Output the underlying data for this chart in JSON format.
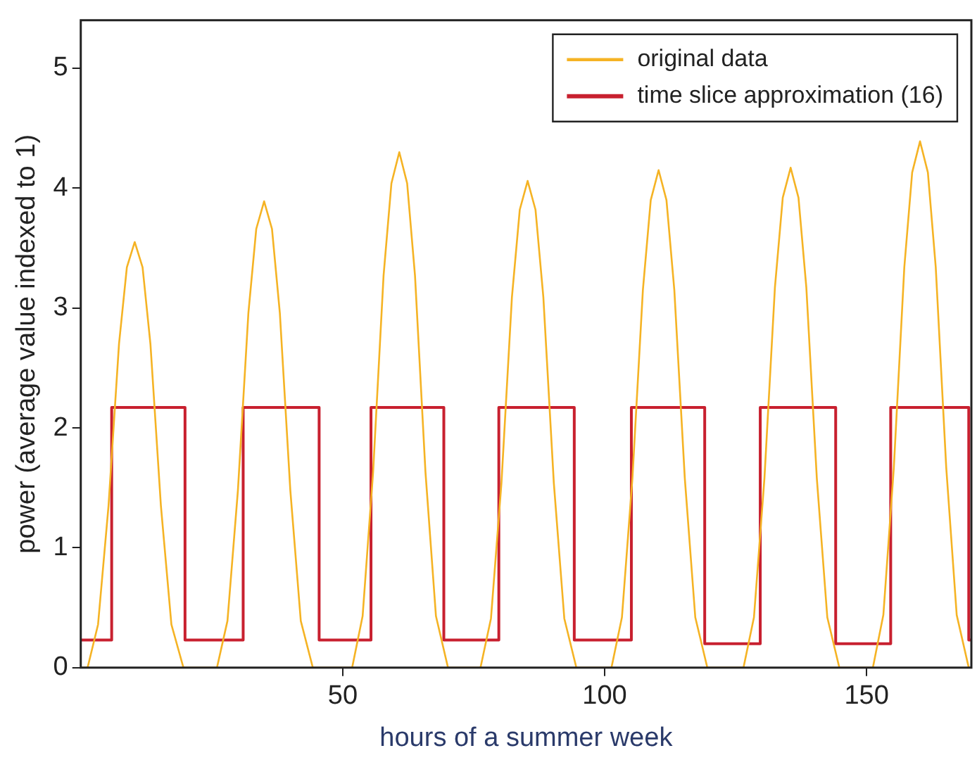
{
  "chart_data": {
    "type": "line",
    "xlabel": "hours of a summer week",
    "ylabel": "power (average value indexed to 1)",
    "xlim": [
      0,
      170
    ],
    "xticks": [
      50,
      100,
      150
    ],
    "ylim": [
      0,
      5.4
    ],
    "yticks": [
      0,
      1,
      2,
      3,
      4,
      5
    ],
    "grid": false,
    "legend": "top right",
    "marker": "none",
    "line_style": "solid",
    "series": [
      {
        "name": "original data",
        "type": "line",
        "color": "#f5b324",
        "x": [
          0,
          1.3,
          3.3,
          5.3,
          7.3,
          8.8,
          10.3,
          11.8,
          13.3,
          15.3,
          17.3,
          19.6,
          26,
          28,
          30,
          32,
          33.5,
          35,
          36.5,
          38,
          40,
          42,
          44.3,
          51.8,
          53.8,
          55.8,
          57.8,
          59.3,
          60.8,
          62.3,
          63.8,
          65.8,
          67.8,
          70.1,
          76.3,
          78.3,
          80.3,
          82.3,
          83.8,
          85.3,
          86.8,
          88.3,
          90.3,
          92.3,
          94.6,
          101.3,
          103.3,
          105.3,
          107.3,
          108.8,
          110.3,
          111.8,
          113.3,
          115.3,
          117.3,
          119.6,
          126.5,
          128.5,
          130.5,
          132.5,
          134,
          135.5,
          137,
          138.5,
          140.5,
          142.5,
          144.8,
          151.2,
          153.2,
          155.2,
          157.2,
          158.7,
          160.2,
          161.7,
          163.2,
          165.2,
          167.2,
          169.5,
          170
        ],
        "values": [
          0,
          0,
          0.36,
          1.35,
          2.7,
          3.34,
          3.55,
          3.34,
          2.7,
          1.35,
          0.36,
          0,
          0,
          0.39,
          1.48,
          2.96,
          3.66,
          3.89,
          3.66,
          2.96,
          1.48,
          0.39,
          0,
          0,
          0.43,
          1.63,
          3.27,
          4.04,
          4.3,
          4.04,
          3.27,
          1.63,
          0.43,
          0,
          0,
          0.41,
          1.54,
          3.09,
          3.82,
          4.06,
          3.82,
          3.09,
          1.54,
          0.41,
          0,
          0,
          0.42,
          1.58,
          3.15,
          3.9,
          4.15,
          3.9,
          3.15,
          1.58,
          0.42,
          0,
          0,
          0.42,
          1.58,
          3.17,
          3.92,
          4.17,
          3.92,
          3.17,
          1.58,
          0.42,
          0,
          0,
          0.44,
          1.67,
          3.34,
          4.13,
          4.39,
          4.13,
          3.34,
          1.67,
          0.44,
          0,
          0
        ]
      },
      {
        "name": "time slice approximation (16)",
        "type": "step",
        "color": "#c8202f",
        "x": [
          0,
          5.9,
          19.9,
          31,
          45.5,
          55.4,
          69.3,
          79.8,
          94.2,
          105.1,
          119.1,
          129.7,
          144.1,
          154.6,
          169.5,
          170
        ],
        "values": [
          0.23,
          2.17,
          0.23,
          2.17,
          0.23,
          2.17,
          0.23,
          2.17,
          0.23,
          2.17,
          0.2,
          2.17,
          0.2,
          2.17,
          0.23,
          0.23
        ]
      }
    ]
  }
}
